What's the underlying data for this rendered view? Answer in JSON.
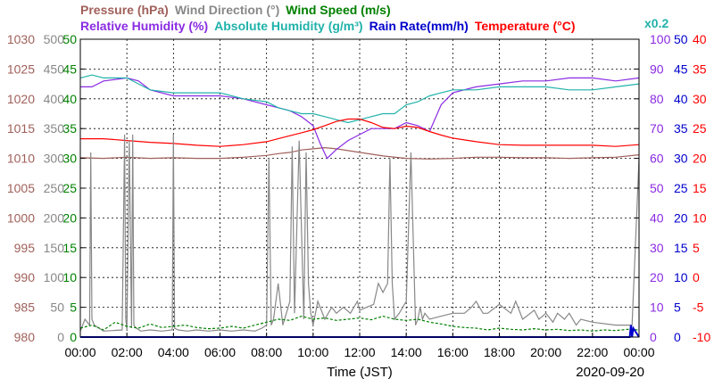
{
  "chart_data": {
    "type": "line",
    "legend_row1": [
      {
        "text": "Pressure (hPa)",
        "color": "#a0605a"
      },
      {
        "text": "Wind Direction (°)",
        "color": "#888888"
      },
      {
        "text": "Wind Speed (m/s)",
        "color": "#008000"
      }
    ],
    "legend_row2": [
      {
        "text": "Relative Humidity (%)",
        "color": "#8a2be2"
      },
      {
        "text": "Absolute Humidity (g/m³)",
        "color": "#20b2aa"
      },
      {
        "text": "Rain Rate(mm/h)",
        "color": "#0000cc"
      },
      {
        "text": "Temperature (°C)",
        "color": "#ff0000"
      }
    ],
    "ah_scale_note": "x0.2",
    "xlabel": "Time (JST)",
    "date": "2020-09-20",
    "x_ticks": [
      "00:00",
      "02:00",
      "04:00",
      "06:00",
      "08:00",
      "10:00",
      "12:00",
      "14:00",
      "16:00",
      "18:00",
      "20:00",
      "22:00",
      "00:00"
    ],
    "xlim_hours": [
      0,
      24
    ],
    "axes": {
      "pressure": {
        "color": "#a0605a",
        "range": [
          980,
          1030
        ],
        "ticks": [
          "1030",
          "1025",
          "1020",
          "1015",
          "1010",
          "1005",
          "1000",
          "995",
          "990",
          "985",
          "980"
        ]
      },
      "wind_dir": {
        "color": "#888888",
        "range": [
          0,
          500
        ],
        "ticks": [
          "500",
          "450",
          "400",
          "350",
          "300",
          "250",
          "200",
          "150",
          "100",
          "50",
          "0"
        ]
      },
      "wind_speed": {
        "color": "#008000",
        "range": [
          0,
          50
        ],
        "ticks": [
          "50",
          "45",
          "40",
          "35",
          "30",
          "25",
          "20",
          "15",
          "10",
          "5",
          "0"
        ]
      },
      "humidity": {
        "color": "#8a2be2",
        "range": [
          0,
          100
        ],
        "ticks": [
          "100",
          "90",
          "80",
          "70",
          "60",
          "50",
          "40",
          "30",
          "20",
          "10",
          "0"
        ]
      },
      "rain": {
        "color": "#0000cc",
        "range": [
          0,
          50
        ],
        "ticks": [
          "50",
          "45",
          "40",
          "35",
          "30",
          "25",
          "20",
          "15",
          "10",
          "5",
          "0"
        ]
      },
      "temperature": {
        "color": "#ff0000",
        "range": [
          -10,
          40
        ],
        "ticks": [
          "40",
          "35",
          "30",
          "25",
          "20",
          "15",
          "10",
          "5",
          "0",
          "-5",
          "-10"
        ]
      }
    },
    "grid": true,
    "series": [
      {
        "name": "Pressure (hPa)",
        "axis": "pressure",
        "color": "#a0605a",
        "x": [
          0,
          1,
          2,
          3,
          4,
          5,
          6,
          7,
          8,
          8.5,
          9,
          9.5,
          10,
          10.5,
          11,
          12,
          13,
          14,
          15,
          16,
          17,
          18,
          19,
          20,
          21,
          22,
          23,
          24
        ],
        "y": [
          1010.1,
          1010.0,
          1010.2,
          1010.0,
          1010.1,
          1010.0,
          1010.0,
          1010.2,
          1010.5,
          1010.8,
          1011.0,
          1011.4,
          1011.6,
          1011.8,
          1011.6,
          1011.0,
          1010.4,
          1010.0,
          1009.9,
          1010.0,
          1010.2,
          1010.2,
          1010.1,
          1010.1,
          1010.0,
          1010.1,
          1010.2,
          1010.6
        ]
      },
      {
        "name": "Relative Humidity (%)",
        "axis": "humidity",
        "color": "#8a2be2",
        "x": [
          0,
          0.5,
          1,
          2,
          2.5,
          3,
          4,
          5,
          6,
          7,
          8,
          8.5,
          9,
          9.5,
          10,
          10.3,
          10.6,
          11,
          11.5,
          12,
          12.5,
          13,
          13.5,
          14,
          14.5,
          15,
          15.5,
          16,
          17,
          18,
          19,
          20,
          21,
          22,
          23,
          24
        ],
        "y": [
          84,
          84,
          86,
          87,
          86,
          83,
          81,
          81,
          81,
          80,
          78,
          77,
          76,
          74,
          71,
          65,
          60,
          63,
          66,
          68,
          70,
          70,
          70,
          72,
          71,
          69,
          78,
          82,
          84,
          85,
          86,
          86,
          87,
          87,
          86,
          87
        ]
      },
      {
        "name": "Absolute Humidity (g/m³)",
        "axis": "humidity",
        "color": "#20b2aa",
        "x": [
          0,
          0.5,
          1,
          2,
          2.5,
          3,
          4,
          5,
          6,
          7,
          8,
          8.5,
          9,
          9.5,
          10,
          10.5,
          11,
          11.5,
          12,
          12.5,
          13,
          13.5,
          14,
          14.5,
          15,
          15.5,
          16,
          17,
          18,
          19,
          20,
          21,
          22,
          23,
          24
        ],
        "y": [
          87,
          88,
          87,
          87,
          85,
          83,
          82,
          82,
          82,
          80,
          79,
          77,
          76,
          75,
          75,
          74,
          73,
          72,
          73,
          74,
          75,
          75,
          78,
          79,
          81,
          82,
          83,
          83,
          84,
          84,
          84,
          83,
          83,
          84,
          85
        ]
      },
      {
        "name": "Temperature (°C)",
        "axis": "temperature",
        "color": "#ff0000",
        "x": [
          0,
          1,
          2,
          3,
          4,
          5,
          6,
          7,
          8,
          8.5,
          9,
          9.5,
          10,
          10.5,
          11,
          11.5,
          12,
          12.5,
          13,
          13.5,
          14,
          14.5,
          15,
          15.5,
          16,
          17,
          18,
          19,
          20,
          21,
          22,
          23,
          24
        ],
        "y": [
          23.3,
          23.3,
          23.0,
          22.7,
          22.5,
          22.2,
          22.0,
          22.3,
          22.8,
          23.3,
          23.8,
          24.3,
          24.8,
          25.5,
          26.2,
          26.6,
          26.6,
          26.0,
          25.2,
          25.0,
          25.4,
          25.2,
          24.5,
          23.9,
          23.4,
          22.8,
          22.3,
          22.2,
          22.2,
          22.2,
          22.2,
          22.0,
          22.3
        ]
      },
      {
        "name": "Wind Direction (°)",
        "axis": "wind_dir",
        "color": "#888888",
        "x": [
          0,
          0.2,
          0.4,
          0.45,
          0.5,
          0.6,
          0.8,
          1.0,
          1.8,
          1.9,
          1.95,
          2.0,
          2.1,
          2.2,
          2.25,
          2.3,
          2.4,
          2.6,
          3.0,
          3.5,
          3.95,
          4.0,
          4.05,
          4.2,
          4.6,
          5.0,
          5.5,
          6.0,
          6.5,
          7.0,
          7.5,
          7.8,
          8.0,
          8.1,
          8.2,
          8.3,
          8.5,
          8.7,
          9.0,
          9.1,
          9.2,
          9.4,
          9.6,
          9.7,
          9.8,
          9.9,
          10.0,
          10.2,
          10.5,
          10.8,
          11.0,
          11.3,
          11.6,
          11.9,
          12.0,
          12.3,
          12.6,
          12.8,
          13.0,
          13.2,
          13.3,
          13.4,
          13.5,
          13.7,
          14.0,
          14.2,
          14.4,
          14.5,
          14.6,
          14.7,
          14.8,
          15.0,
          15.5,
          16.0,
          16.5,
          16.8,
          17.0,
          17.3,
          17.5,
          18.0,
          18.5,
          18.7,
          19.0,
          19.5,
          19.7,
          20.0,
          20.3,
          20.5,
          20.8,
          21.0,
          21.3,
          21.5,
          22.0,
          23.0,
          23.5,
          23.7,
          24.0
        ],
        "y": [
          10,
          30,
          20,
          310,
          30,
          20,
          15,
          10,
          12,
          340,
          30,
          12,
          330,
          15,
          340,
          20,
          15,
          10,
          12,
          10,
          12,
          340,
          15,
          12,
          10,
          12,
          10,
          12,
          10,
          12,
          10,
          15,
          20,
          300,
          20,
          30,
          90,
          20,
          60,
          320,
          40,
          330,
          30,
          310,
          90,
          40,
          20,
          60,
          30,
          50,
          40,
          50,
          40,
          60,
          45,
          50,
          55,
          90,
          75,
          90,
          300,
          90,
          30,
          40,
          60,
          310,
          20,
          30,
          50,
          30,
          40,
          30,
          35,
          40,
          40,
          50,
          60,
          40,
          40,
          55,
          40,
          60,
          30,
          45,
          30,
          40,
          25,
          40,
          30,
          40,
          20,
          30,
          25,
          20,
          20,
          20,
          300
        ]
      },
      {
        "name": "Wind Speed (m/s)",
        "axis": "wind_speed",
        "color": "#008000",
        "x": [
          0,
          0.5,
          1,
          1.5,
          2,
          2.5,
          3,
          3.5,
          4,
          4.5,
          5,
          5.5,
          6,
          6.5,
          7,
          7.5,
          8,
          8.5,
          9,
          9.5,
          10,
          10.5,
          11,
          11.5,
          12,
          12.5,
          13,
          13.5,
          14,
          14.5,
          15,
          15.5,
          16,
          16.5,
          17,
          17.5,
          18,
          18.5,
          19,
          19.5,
          20,
          20.5,
          21,
          21.5,
          22,
          22.5,
          23,
          23.5,
          24
        ],
        "y": [
          1.5,
          2.0,
          1.2,
          2.5,
          1.8,
          1.5,
          2.2,
          1.6,
          1.8,
          2.0,
          1.6,
          1.4,
          1.5,
          1.8,
          1.5,
          2.0,
          2.5,
          3.0,
          2.8,
          3.5,
          3.0,
          3.2,
          2.8,
          3.0,
          3.2,
          2.9,
          3.5,
          3.0,
          2.8,
          3.0,
          2.5,
          2.2,
          1.8,
          1.6,
          1.5,
          1.2,
          1.5,
          1.3,
          1.2,
          1.4,
          1.2,
          1.3,
          1.1,
          1.2,
          1.0,
          1.2,
          1.1,
          1.3,
          1.2
        ]
      },
      {
        "name": "Rain Rate(mm/h)",
        "axis": "rain",
        "color": "#0000cc",
        "x": [
          0,
          23.6,
          23.65,
          23.7,
          23.75,
          24
        ],
        "y": [
          0,
          0,
          2,
          0,
          1.5,
          0
        ]
      }
    ]
  }
}
